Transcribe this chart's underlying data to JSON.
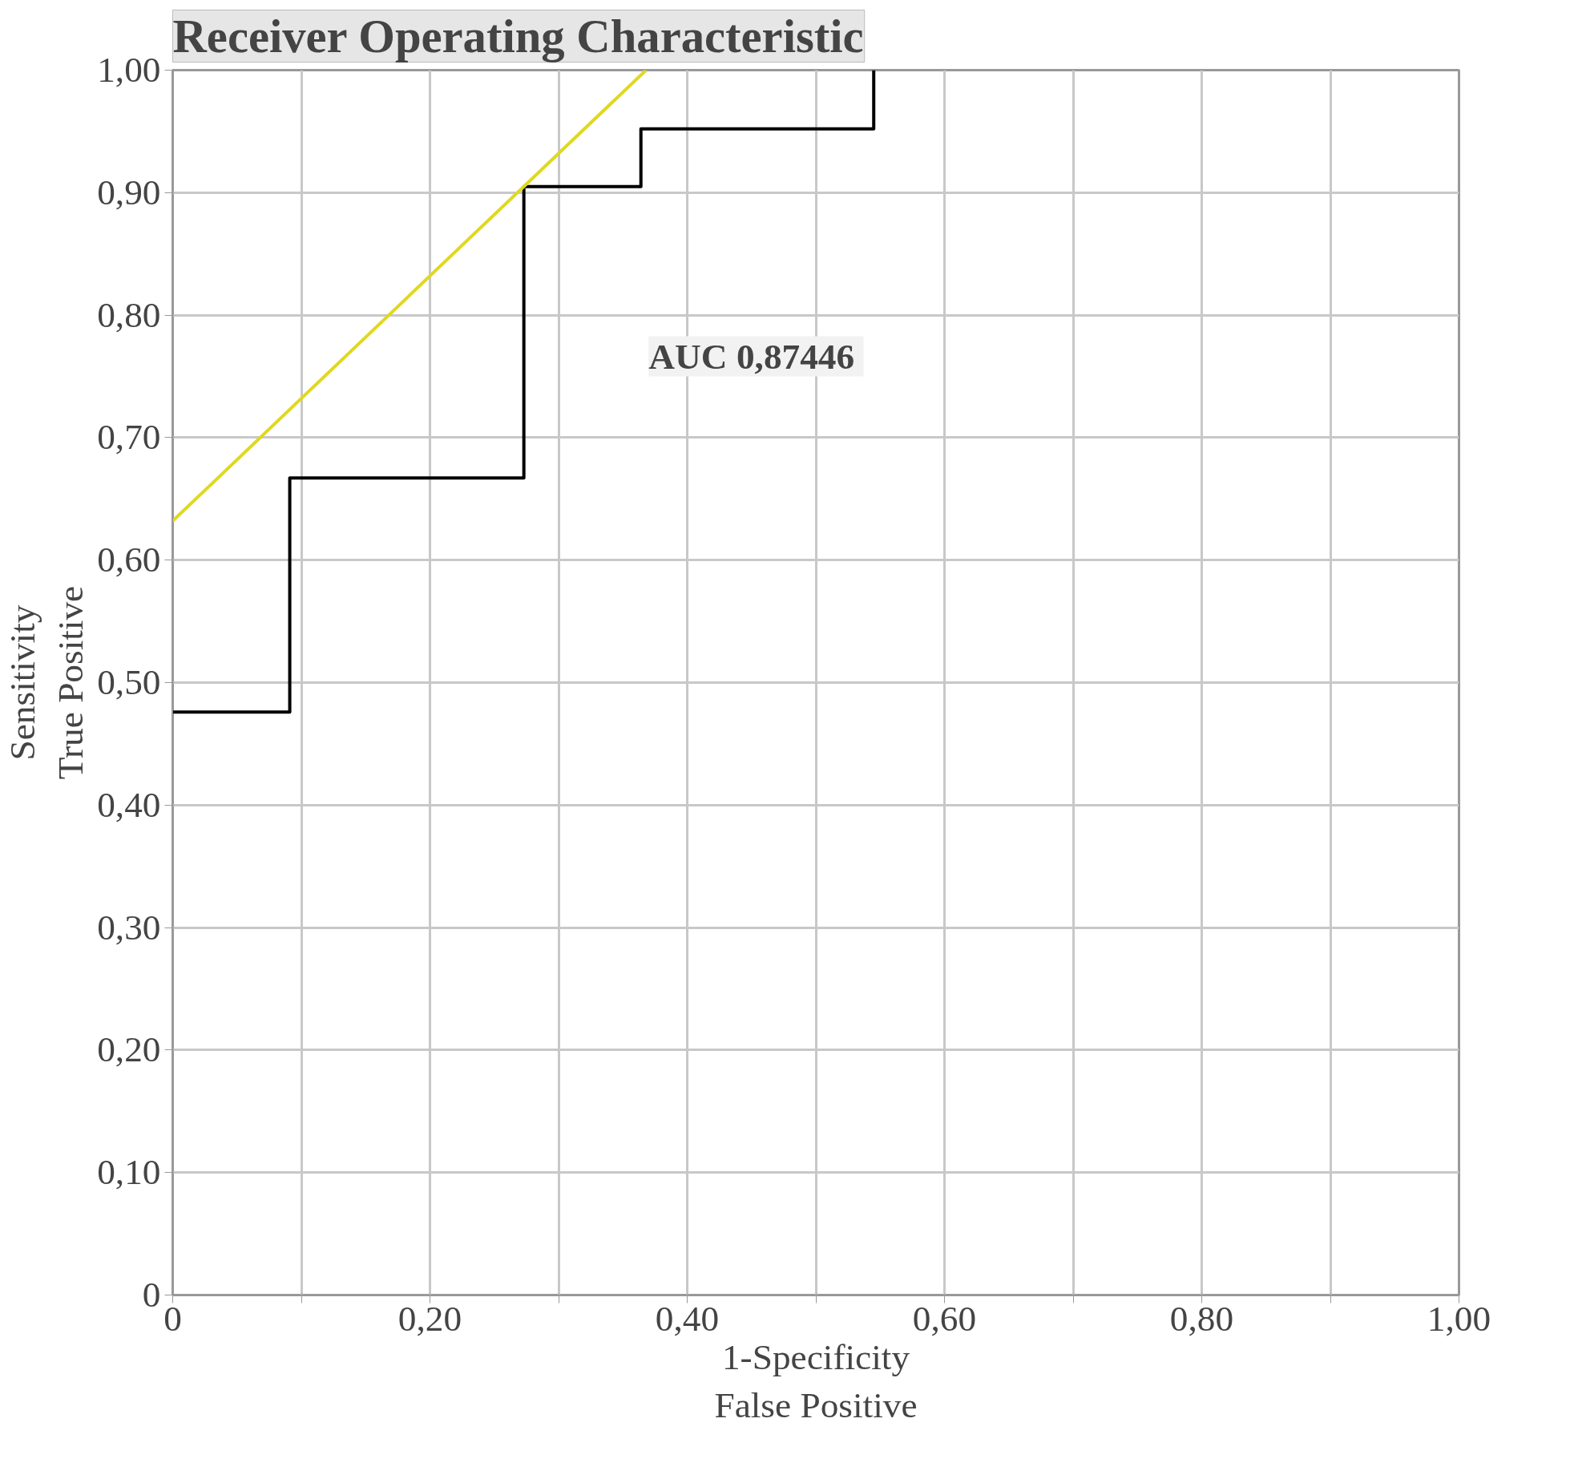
{
  "chart_data": {
    "type": "step",
    "title": "Receiver Operating Characteristic",
    "xlabel": "1-Specificity\nFalse Positive",
    "ylabel": "Sensitivity\nTrue Positive",
    "annotations": [
      "AUC  0,87446"
    ],
    "series": [
      {
        "color": "#000000",
        "x": [
          0,
          0.091,
          0.273,
          0.364,
          0.545
        ],
        "values": [
          0.476,
          0.667,
          0.905,
          0.952,
          1.0
        ]
      },
      {
        "type": "line",
        "color": "#e0d820",
        "x": [
          0,
          0.368
        ],
        "values": [
          0.632,
          1.0
        ]
      }
    ],
    "xlim": [
      0,
      1
    ],
    "ylim": [
      0,
      1
    ],
    "xticks": [
      0,
      {
        "value": 0.1,
        "label": null
      },
      {
        "value": 0.2,
        "label": "0,20"
      },
      {
        "value": 0.3,
        "label": null
      },
      {
        "value": 0.4,
        "label": "0,40"
      },
      {
        "value": 0.5,
        "label": null
      },
      {
        "value": 0.6,
        "label": "0,60"
      },
      {
        "value": 0.7,
        "label": null
      },
      {
        "value": 0.8,
        "label": "0,80"
      },
      {
        "value": 0.9,
        "label": null
      },
      {
        "value": 1,
        "label": "1,00"
      }
    ],
    "yticks": [
      0,
      {
        "value": 0.1,
        "label": "0,10"
      },
      {
        "value": 0.2,
        "label": "0,20"
      },
      {
        "value": 0.3,
        "label": "0,30"
      },
      {
        "value": 0.4,
        "label": "0,40"
      },
      {
        "value": 0.5,
        "label": "0,50"
      },
      {
        "value": 0.6,
        "label": "0,60"
      },
      {
        "value": 0.7,
        "label": "0,70"
      },
      {
        "value": 0.8,
        "label": "0,80"
      },
      {
        "value": 0.9,
        "label": "0,90"
      },
      {
        "value": 1,
        "label": "1,00"
      }
    ],
    "grid": true,
    "marker": "none",
    "line_style": "solid"
  }
}
